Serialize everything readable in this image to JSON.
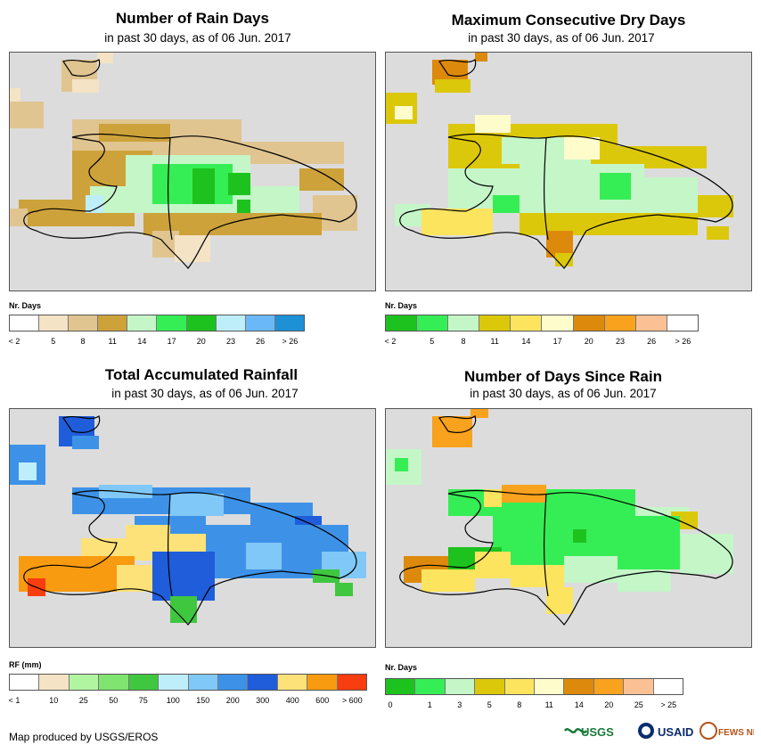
{
  "panels": {
    "rain_days": {
      "title": "Number of Rain Days",
      "subtitle": "in past 30 days, as of 06 Jun. 2017",
      "legend_title": "Nr. Days",
      "legend_labels": [
        "< 2",
        "5",
        "8",
        "11",
        "14",
        "17",
        "20",
        "23",
        "26",
        "> 26"
      ],
      "legend_colors": [
        "#ffffff",
        "#f5e3c6",
        "#e0c590",
        "#cda23a",
        "#c4f6c8",
        "#35ee55",
        "#1ec21e",
        "#bfeefb",
        "#6ab8f7",
        "#1e90d6"
      ]
    },
    "dry_days": {
      "title": "Maximum Consecutive Dry Days",
      "subtitle": "in past 30 days, as of 06 Jun. 2017",
      "legend_title": "Nr. Days",
      "legend_labels": [
        "< 2",
        "5",
        "8",
        "11",
        "14",
        "17",
        "20",
        "23",
        "26",
        "> 26"
      ],
      "legend_colors": [
        "#1ec21e",
        "#35ee55",
        "#c4f6c8",
        "#dcc80a",
        "#fce45f",
        "#fffccc",
        "#dd8a0c",
        "#f9a21e",
        "#fbc195",
        "#ffffff"
      ]
    },
    "rainfall": {
      "title": "Total Accumulated Rainfall",
      "subtitle": "in past 30 days, as of 06 Jun. 2017",
      "legend_title": "RF (mm)",
      "legend_labels": [
        "< 1",
        "10",
        "25",
        "50",
        "75",
        "100",
        "150",
        "200",
        "300",
        "400",
        "600",
        "> 600"
      ],
      "legend_colors": [
        "#ffffff",
        "#f5e3c6",
        "#b2f5a0",
        "#7fe470",
        "#3fc73f",
        "#bfeefb",
        "#80c8f7",
        "#3d92e8",
        "#1f5ddb",
        "#fde27a",
        "#f89b10",
        "#f83d10"
      ]
    },
    "days_since": {
      "title": "Number of Days Since Rain",
      "subtitle": "in past 30 days, as of 06 Jun. 2017",
      "legend_title": "Nr. Days",
      "legend_labels": [
        "0",
        "1",
        "3",
        "5",
        "8",
        "11",
        "14",
        "20",
        "25",
        "> 25"
      ],
      "legend_colors": [
        "#1ec21e",
        "#35ee55",
        "#c4f6c8",
        "#dcc80a",
        "#fce45f",
        "#fffccc",
        "#dd8a0c",
        "#f9a21e",
        "#fbc195",
        "#ffffff"
      ]
    }
  },
  "footer": {
    "credit": "Map produced by USGS/EROS"
  },
  "logos": {
    "usgs": "USGS",
    "usaid": "USAID",
    "fewsnet": "FEWS NET"
  }
}
